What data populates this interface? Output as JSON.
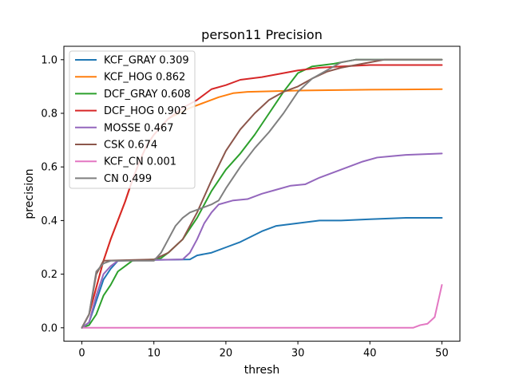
{
  "chart_data": {
    "type": "line",
    "title": "person11 Precision",
    "xlabel": "thresh",
    "ylabel": "precision",
    "xlim": [
      -2.5,
      52.5
    ],
    "ylim": [
      -0.05,
      1.05
    ],
    "xticks": [
      0,
      10,
      20,
      30,
      40,
      50
    ],
    "yticks": [
      0.0,
      0.2,
      0.4,
      0.6,
      0.8,
      1.0
    ],
    "xtick_labels": [
      "0",
      "10",
      "20",
      "30",
      "40",
      "50"
    ],
    "ytick_labels": [
      "0.0",
      "0.2",
      "0.4",
      "0.6",
      "0.8",
      "1.0"
    ],
    "grid": false,
    "legend_position": "upper-left",
    "series": [
      {
        "name": "KCF_GRAY 0.309",
        "color": "#1f77b4",
        "points": [
          [
            0,
            0
          ],
          [
            1,
            0.02
          ],
          [
            2,
            0.1
          ],
          [
            3,
            0.18
          ],
          [
            4,
            0.22
          ],
          [
            5,
            0.25
          ],
          [
            10,
            0.253
          ],
          [
            15,
            0.255
          ],
          [
            16,
            0.27
          ],
          [
            18,
            0.28
          ],
          [
            20,
            0.3
          ],
          [
            22,
            0.32
          ],
          [
            25,
            0.36
          ],
          [
            27,
            0.38
          ],
          [
            30,
            0.39
          ],
          [
            33,
            0.4
          ],
          [
            36,
            0.4
          ],
          [
            40,
            0.405
          ],
          [
            45,
            0.41
          ],
          [
            50,
            0.41
          ]
        ]
      },
      {
        "name": "KCF_HOG 0.862",
        "color": "#ff7f0e",
        "points": [
          [
            0,
            0
          ],
          [
            1,
            0.05
          ],
          [
            2,
            0.15
          ],
          [
            3,
            0.25
          ],
          [
            4,
            0.33
          ],
          [
            5,
            0.4
          ],
          [
            6,
            0.47
          ],
          [
            7,
            0.55
          ],
          [
            8,
            0.62
          ],
          [
            9,
            0.68
          ],
          [
            10,
            0.72
          ],
          [
            12,
            0.78
          ],
          [
            15,
            0.82
          ],
          [
            17,
            0.84
          ],
          [
            19,
            0.86
          ],
          [
            21,
            0.875
          ],
          [
            23,
            0.88
          ],
          [
            30,
            0.885
          ],
          [
            40,
            0.888
          ],
          [
            50,
            0.89
          ]
        ]
      },
      {
        "name": "DCF_GRAY 0.608",
        "color": "#2ca02c",
        "points": [
          [
            0,
            0
          ],
          [
            1,
            0.01
          ],
          [
            2,
            0.05
          ],
          [
            3,
            0.12
          ],
          [
            4,
            0.16
          ],
          [
            5,
            0.21
          ],
          [
            6,
            0.23
          ],
          [
            7,
            0.25
          ],
          [
            10,
            0.255
          ],
          [
            11,
            0.26
          ],
          [
            12,
            0.28
          ],
          [
            14,
            0.33
          ],
          [
            16,
            0.41
          ],
          [
            18,
            0.51
          ],
          [
            20,
            0.59
          ],
          [
            22,
            0.65
          ],
          [
            24,
            0.72
          ],
          [
            26,
            0.8
          ],
          [
            28,
            0.88
          ],
          [
            30,
            0.95
          ],
          [
            32,
            0.975
          ],
          [
            35,
            0.985
          ],
          [
            38,
            1.0
          ],
          [
            40,
            1.0
          ],
          [
            50,
            1.0
          ]
        ]
      },
      {
        "name": "DCF_HOG 0.902",
        "color": "#d62728",
        "points": [
          [
            0,
            0
          ],
          [
            1,
            0.05
          ],
          [
            2,
            0.15
          ],
          [
            3,
            0.25
          ],
          [
            4,
            0.33
          ],
          [
            5,
            0.4
          ],
          [
            6,
            0.47
          ],
          [
            7,
            0.55
          ],
          [
            8,
            0.62
          ],
          [
            9,
            0.68
          ],
          [
            10,
            0.72
          ],
          [
            12,
            0.78
          ],
          [
            14,
            0.82
          ],
          [
            16,
            0.85
          ],
          [
            18,
            0.89
          ],
          [
            20,
            0.905
          ],
          [
            22,
            0.925
          ],
          [
            25,
            0.935
          ],
          [
            28,
            0.95
          ],
          [
            30,
            0.96
          ],
          [
            33,
            0.97
          ],
          [
            36,
            0.975
          ],
          [
            40,
            0.98
          ],
          [
            50,
            0.98
          ]
        ]
      },
      {
        "name": "MOSSE 0.467",
        "color": "#9467bd",
        "points": [
          [
            0,
            0
          ],
          [
            1,
            0.02
          ],
          [
            2,
            0.12
          ],
          [
            3,
            0.2
          ],
          [
            4,
            0.23
          ],
          [
            5,
            0.25
          ],
          [
            10,
            0.253
          ],
          [
            14,
            0.255
          ],
          [
            15,
            0.28
          ],
          [
            16,
            0.33
          ],
          [
            17,
            0.39
          ],
          [
            18,
            0.43
          ],
          [
            19,
            0.46
          ],
          [
            21,
            0.475
          ],
          [
            23,
            0.48
          ],
          [
            25,
            0.5
          ],
          [
            27,
            0.515
          ],
          [
            29,
            0.53
          ],
          [
            31,
            0.535
          ],
          [
            33,
            0.56
          ],
          [
            35,
            0.58
          ],
          [
            37,
            0.6
          ],
          [
            39,
            0.62
          ],
          [
            41,
            0.635
          ],
          [
            43,
            0.64
          ],
          [
            45,
            0.645
          ],
          [
            50,
            0.65
          ]
        ]
      },
      {
        "name": "CSK 0.674",
        "color": "#8c564b",
        "points": [
          [
            0,
            0
          ],
          [
            1,
            0.05
          ],
          [
            2,
            0.2
          ],
          [
            3,
            0.25
          ],
          [
            10,
            0.255
          ],
          [
            12,
            0.28
          ],
          [
            14,
            0.33
          ],
          [
            16,
            0.43
          ],
          [
            18,
            0.55
          ],
          [
            20,
            0.66
          ],
          [
            22,
            0.74
          ],
          [
            24,
            0.8
          ],
          [
            26,
            0.85
          ],
          [
            28,
            0.88
          ],
          [
            30,
            0.9
          ],
          [
            32,
            0.93
          ],
          [
            34,
            0.955
          ],
          [
            36,
            0.97
          ],
          [
            38,
            0.98
          ],
          [
            40,
            0.99
          ],
          [
            42,
            1.0
          ],
          [
            50,
            1.0
          ]
        ]
      },
      {
        "name": "KCF_CN 0.001",
        "color": "#e377c2",
        "points": [
          [
            0,
            0
          ],
          [
            10,
            0
          ],
          [
            20,
            0
          ],
          [
            30,
            0
          ],
          [
            40,
            0
          ],
          [
            46,
            0
          ],
          [
            47,
            0.01
          ],
          [
            48,
            0.015
          ],
          [
            49,
            0.04
          ],
          [
            49.5,
            0.1
          ],
          [
            50,
            0.16
          ]
        ]
      },
      {
        "name": "CN 0.499",
        "color": "#7f7f7f",
        "points": [
          [
            0,
            0
          ],
          [
            1,
            0.05
          ],
          [
            2,
            0.21
          ],
          [
            3,
            0.24
          ],
          [
            4,
            0.25
          ],
          [
            10,
            0.25
          ],
          [
            11,
            0.28
          ],
          [
            12,
            0.33
          ],
          [
            13,
            0.38
          ],
          [
            14,
            0.41
          ],
          [
            15,
            0.43
          ],
          [
            16,
            0.44
          ],
          [
            17,
            0.45
          ],
          [
            18,
            0.46
          ],
          [
            19,
            0.475
          ],
          [
            20,
            0.52
          ],
          [
            22,
            0.6
          ],
          [
            24,
            0.67
          ],
          [
            26,
            0.73
          ],
          [
            28,
            0.8
          ],
          [
            30,
            0.88
          ],
          [
            32,
            0.93
          ],
          [
            34,
            0.96
          ],
          [
            36,
            0.99
          ],
          [
            38,
            1.0
          ],
          [
            50,
            1.0
          ]
        ]
      }
    ]
  }
}
